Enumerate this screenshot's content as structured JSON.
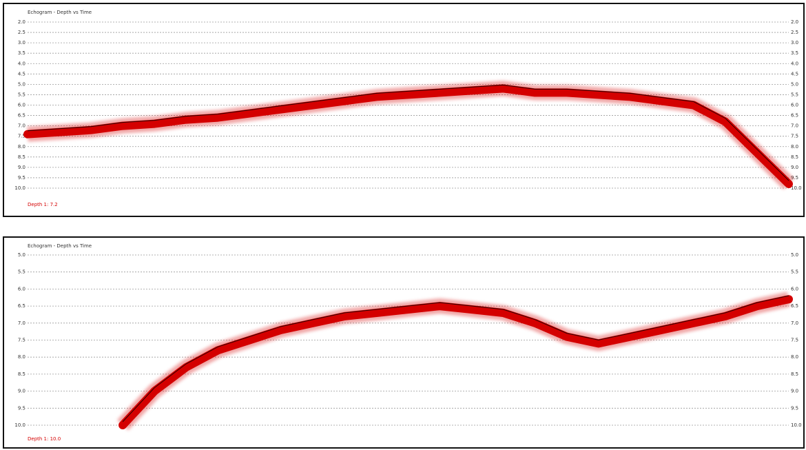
{
  "chart_data": [
    {
      "type": "echogram",
      "title": "Echogram - Depth vs Time",
      "categories": [
        null,
        null,
        null,
        null,
        null,
        null,
        null,
        null,
        null,
        null,
        null,
        null,
        null,
        null,
        null,
        null,
        null,
        null,
        null,
        null,
        null,
        null,
        null,
        null,
        null
      ],
      "series": [
        {
          "name": "Depth 1: 7.2",
          "color": "#d40000",
          "values": [
            7.4,
            7.3,
            7.2,
            7.0,
            6.9,
            6.7,
            6.6,
            6.4,
            6.2,
            6.0,
            5.8,
            5.6,
            5.5,
            5.4,
            5.3,
            5.2,
            5.4,
            5.4,
            5.5,
            5.6,
            5.8,
            6.0,
            6.8,
            8.3,
            9.8
          ]
        }
      ],
      "ylim": [
        2.0,
        10.0
      ],
      "y_reversed": true,
      "grid": true,
      "yticks": [
        {
          "value": 2,
          "label": "2.0"
        },
        {
          "value": 2.5,
          "label": "2.5"
        },
        {
          "value": 3,
          "label": "3.0"
        },
        {
          "value": 3.5,
          "label": "3.5"
        },
        {
          "value": 4,
          "label": "4.0"
        },
        {
          "value": 4.5,
          "label": "4.5"
        },
        {
          "value": 5,
          "label": "5.0"
        },
        {
          "value": 5.5,
          "label": "5.5"
        },
        {
          "value": 6,
          "label": "6.0"
        },
        {
          "value": 6.5,
          "label": "6.5"
        },
        {
          "value": 7,
          "label": "7.0"
        },
        {
          "value": 7.5,
          "label": "7.5"
        },
        {
          "value": 8,
          "label": "8.0"
        },
        {
          "value": 8.5,
          "label": "8.5"
        },
        {
          "value": 9,
          "label": "9.0"
        },
        {
          "value": 9.5,
          "label": "9.5"
        },
        {
          "value": 10,
          "label": "10.0"
        }
      ]
    },
    {
      "type": "echogram",
      "title": "Echogram - Depth vs Time",
      "categories": [
        null,
        null,
        null,
        null,
        null,
        null,
        null,
        null,
        null,
        null,
        null,
        null,
        null,
        null,
        null,
        null,
        null,
        null,
        null,
        null,
        null,
        null,
        null,
        null,
        null
      ],
      "series": [
        {
          "name": "Depth 1: 10.0",
          "color": "#d40000",
          "values": [
            null,
            null,
            null,
            10.0,
            9.0,
            8.3,
            7.8,
            7.5,
            7.2,
            7.0,
            6.8,
            6.7,
            6.6,
            6.5,
            6.6,
            6.7,
            7.0,
            7.4,
            7.6,
            7.4,
            7.2,
            7.0,
            6.8,
            6.5,
            6.3
          ]
        }
      ],
      "ylim": [
        5.0,
        10.0
      ],
      "y_reversed": true,
      "grid": true,
      "yticks": [
        {
          "value": 5,
          "label": "5.0"
        },
        {
          "value": 5.5,
          "label": "5.5"
        },
        {
          "value": 6,
          "label": "6.0"
        },
        {
          "value": 6.5,
          "label": "6.5"
        },
        {
          "value": 7,
          "label": "7.0"
        },
        {
          "value": 7.5,
          "label": "7.5"
        },
        {
          "value": 8,
          "label": "8.0"
        },
        {
          "value": 8.5,
          "label": "8.5"
        },
        {
          "value": 9,
          "label": "9.0"
        },
        {
          "value": 9.5,
          "label": "9.5"
        },
        {
          "value": 10,
          "label": "10.0"
        }
      ]
    }
  ]
}
